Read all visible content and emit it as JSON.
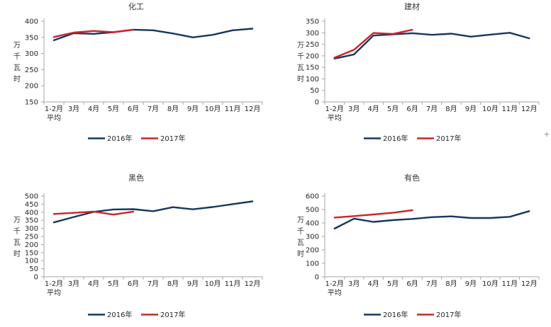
{
  "page": {
    "background": "#ffffff"
  },
  "colors": {
    "series_2016": "#17375E",
    "series_2017": "#CC2427",
    "axis": "#A6A6A6",
    "text": "#333333"
  },
  "legend": {
    "position": "bottom",
    "items": [
      {
        "label": "2016年",
        "color": "#17375E"
      },
      {
        "label": "2017年",
        "color": "#CC2427"
      }
    ]
  },
  "x_axis": {
    "categories": [
      "1-2月",
      "3月",
      "4月",
      "5月",
      "6月",
      "7月",
      "8月",
      "9月",
      "10月",
      "11月",
      "12月"
    ],
    "first_category_line2": "平均"
  },
  "y_axis_title": "万千瓦时",
  "artifacts": {
    "plus_mark": "+"
  },
  "chart_data": [
    {
      "type": "line",
      "id": "chemical",
      "title": "化工",
      "xlabel": "",
      "ylabel": "万千瓦时",
      "ylim": [
        150,
        400
      ],
      "ystep": 50,
      "grid": false,
      "categories": [
        "1-2月平均",
        "3月",
        "4月",
        "5月",
        "6月",
        "7月",
        "8月",
        "9月",
        "10月",
        "11月",
        "12月"
      ],
      "series": [
        {
          "name": "2016年",
          "color": "#17375E",
          "values": [
            341,
            363,
            361,
            366,
            374,
            372,
            362,
            350,
            358,
            372,
            377
          ]
        },
        {
          "name": "2017年",
          "color": "#CC2427",
          "values": [
            351,
            365,
            370,
            366,
            374
          ]
        }
      ]
    },
    {
      "type": "line",
      "id": "building-materials",
      "title": "建材",
      "xlabel": "",
      "ylabel": "万千瓦时",
      "ylim": [
        0,
        350
      ],
      "ystep": 50,
      "grid": false,
      "categories": [
        "1-2月平均",
        "3月",
        "4月",
        "5月",
        "6月",
        "7月",
        "8月",
        "9月",
        "10月",
        "11月",
        "12月"
      ],
      "series": [
        {
          "name": "2016年",
          "color": "#17375E",
          "values": [
            188,
            206,
            288,
            293,
            298,
            291,
            296,
            283,
            292,
            300,
            276
          ]
        },
        {
          "name": "2017年",
          "color": "#CC2427",
          "values": [
            192,
            226,
            299,
            295,
            313
          ]
        }
      ]
    },
    {
      "type": "line",
      "id": "ferrous",
      "title": "黑色",
      "xlabel": "",
      "ylabel": "万千瓦时",
      "ylim": [
        0,
        500
      ],
      "ystep": 50,
      "grid": false,
      "categories": [
        "1-2月平均",
        "3月",
        "4月",
        "5月",
        "6月",
        "7月",
        "8月",
        "9月",
        "10月",
        "11月",
        "12月"
      ],
      "series": [
        {
          "name": "2016年",
          "color": "#17375E",
          "values": [
            337,
            370,
            402,
            417,
            419,
            406,
            431,
            418,
            432,
            450,
            467
          ]
        },
        {
          "name": "2017年",
          "color": "#CC2427",
          "values": [
            389,
            396,
            404,
            385,
            404
          ]
        }
      ]
    },
    {
      "type": "line",
      "id": "nonferrous",
      "title": "有色",
      "xlabel": "",
      "ylabel": "万千瓦时",
      "ylim": [
        0,
        600
      ],
      "ystep": 100,
      "grid": false,
      "categories": [
        "1-2月平均",
        "3月",
        "4月",
        "5月",
        "6月",
        "7月",
        "8月",
        "9月",
        "10月",
        "11月",
        "12月"
      ],
      "series": [
        {
          "name": "2016年",
          "color": "#17375E",
          "values": [
            358,
            432,
            408,
            421,
            430,
            443,
            449,
            437,
            437,
            446,
            488
          ]
        },
        {
          "name": "2017年",
          "color": "#CC2427",
          "values": [
            440,
            451,
            463,
            476,
            495
          ]
        }
      ]
    }
  ]
}
